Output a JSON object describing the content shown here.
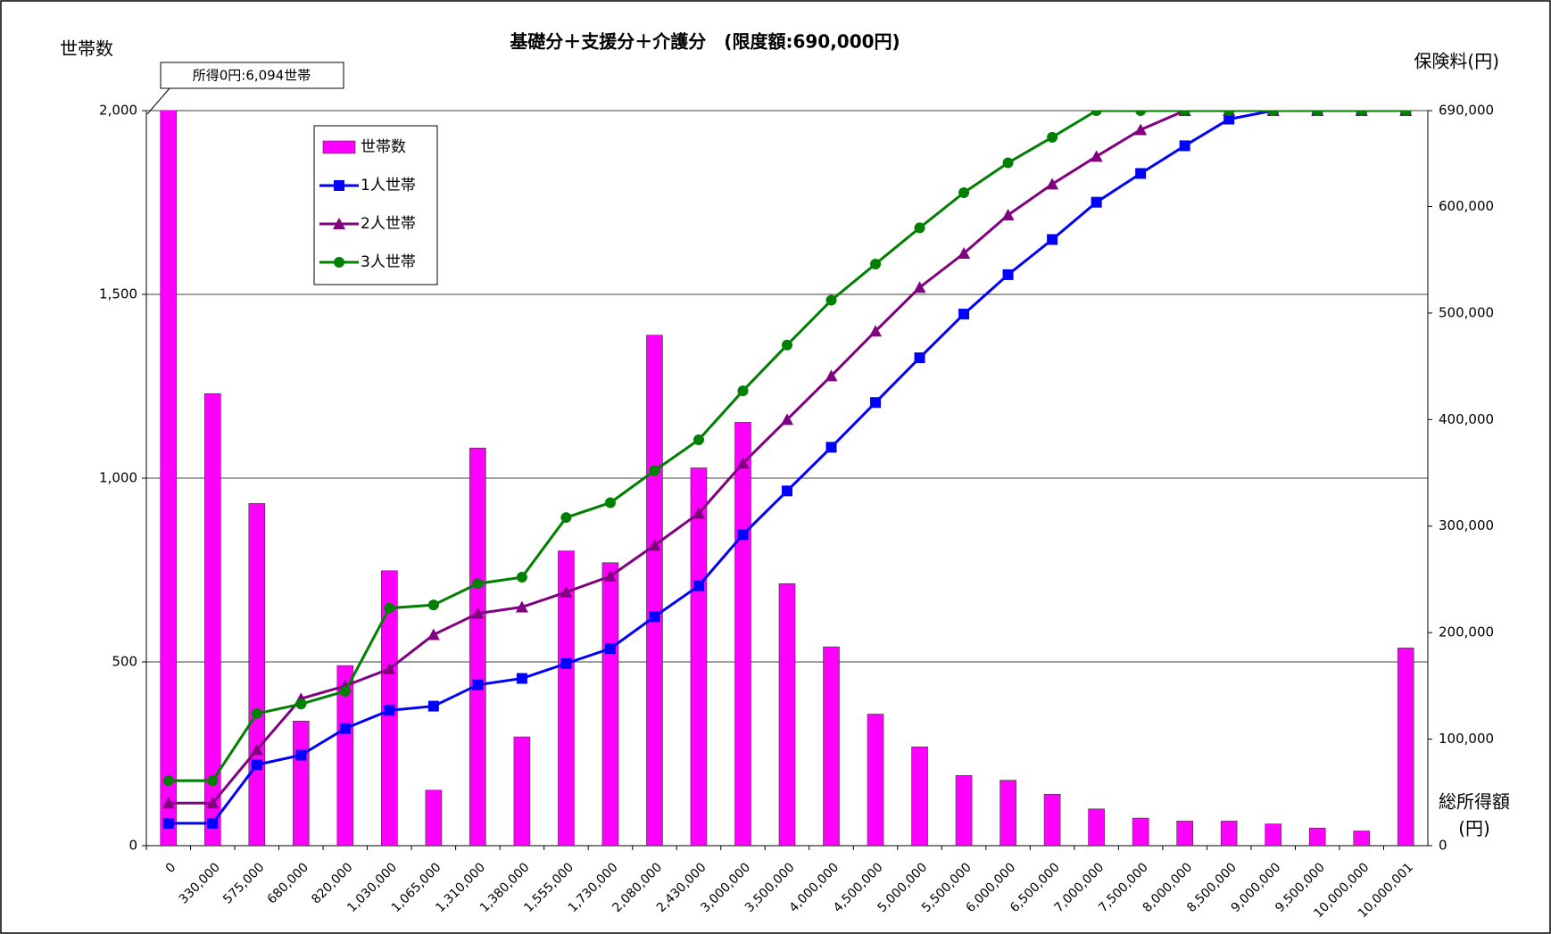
{
  "chart_data": {
    "type": "bar",
    "title": "基礎分＋支援分＋介護分　(限度額:690,000円)",
    "y_label": "世帯数",
    "y2_label": "保険料(円)",
    "x_label": "総所得額",
    "x_unit": "(円)",
    "annotation": "所得0円:6,094世帯",
    "categories": [
      "0",
      "330,000",
      "575,000",
      "680,000",
      "820,000",
      "1,030,000",
      "1,065,000",
      "1,310,000",
      "1,380,000",
      "1,555,000",
      "1,730,000",
      "2,080,000",
      "2,430,000",
      "3,000,000",
      "3,500,000",
      "4,000,000",
      "4,500,000",
      "5,000,000",
      "5,500,000",
      "6,000,000",
      "6,500,000",
      "7,000,000",
      "7,500,000",
      "8,000,000",
      "8,500,000",
      "9,000,000",
      "9,500,000",
      "10,000,000",
      "10,000,001"
    ],
    "series": [
      {
        "name": "世帯数",
        "type": "bar",
        "color": "#ff00ff",
        "values": [
          6094,
          1230,
          931,
          339,
          490,
          748,
          151,
          1082,
          296,
          802,
          770,
          1389,
          1028,
          1152,
          713,
          541,
          358,
          269,
          191,
          178,
          140,
          100,
          75,
          67,
          67,
          59,
          48,
          40,
          538
        ]
      },
      {
        "name": "1人世帯",
        "type": "line",
        "marker": "square",
        "axis": "y2",
        "color": "#0000ff",
        "values": [
          21000,
          21000,
          76000,
          85000,
          110000,
          127000,
          131000,
          151000,
          157000,
          171000,
          185000,
          215000,
          244000,
          292000,
          333000,
          374000,
          416000,
          458000,
          499000,
          536000,
          569000,
          604000,
          631000,
          657000,
          682000,
          690000,
          690000,
          690000,
          690000
        ]
      },
      {
        "name": "2人世帯",
        "type": "line",
        "marker": "triangle",
        "axis": "y2",
        "color": "#800080",
        "values": [
          40000,
          40000,
          90000,
          138000,
          150000,
          166000,
          198000,
          218000,
          224000,
          238000,
          253000,
          282000,
          312000,
          359000,
          400000,
          441000,
          483000,
          524000,
          556000,
          592000,
          621000,
          647000,
          672000,
          690000,
          690000,
          690000,
          690000,
          690000,
          690000
        ]
      },
      {
        "name": "3人世帯",
        "type": "line",
        "marker": "circle",
        "axis": "y2",
        "color": "#008000",
        "values": [
          61000,
          61000,
          124000,
          133000,
          145000,
          223000,
          226000,
          246000,
          252000,
          308000,
          322000,
          352000,
          381000,
          427000,
          470000,
          512000,
          546000,
          580000,
          613000,
          641000,
          665000,
          690000,
          690000,
          690000,
          690000,
          690000,
          690000,
          690000,
          690000
        ]
      }
    ],
    "ylim": [
      0,
      2000
    ],
    "yticks": [
      0,
      {
        "value": 500,
        "label": "500"
      },
      {
        "value": 1000,
        "label": "1,000"
      },
      {
        "value": 1500,
        "label": "1,500"
      },
      {
        "value": 2000,
        "label": "2,000"
      }
    ],
    "y2lim": [
      0,
      690000
    ],
    "y2ticks": [
      0,
      {
        "value": 100000,
        "label": "100,000"
      },
      {
        "value": 200000,
        "label": "200,000"
      },
      {
        "value": 300000,
        "label": "300,000"
      },
      {
        "value": 400000,
        "label": "400,000"
      },
      {
        "value": 500000,
        "label": "500,000"
      },
      {
        "value": 600000,
        "label": "600,000"
      },
      {
        "value": 690000,
        "label": "690,000"
      }
    ],
    "grid": true,
    "legend": "upper left"
  }
}
